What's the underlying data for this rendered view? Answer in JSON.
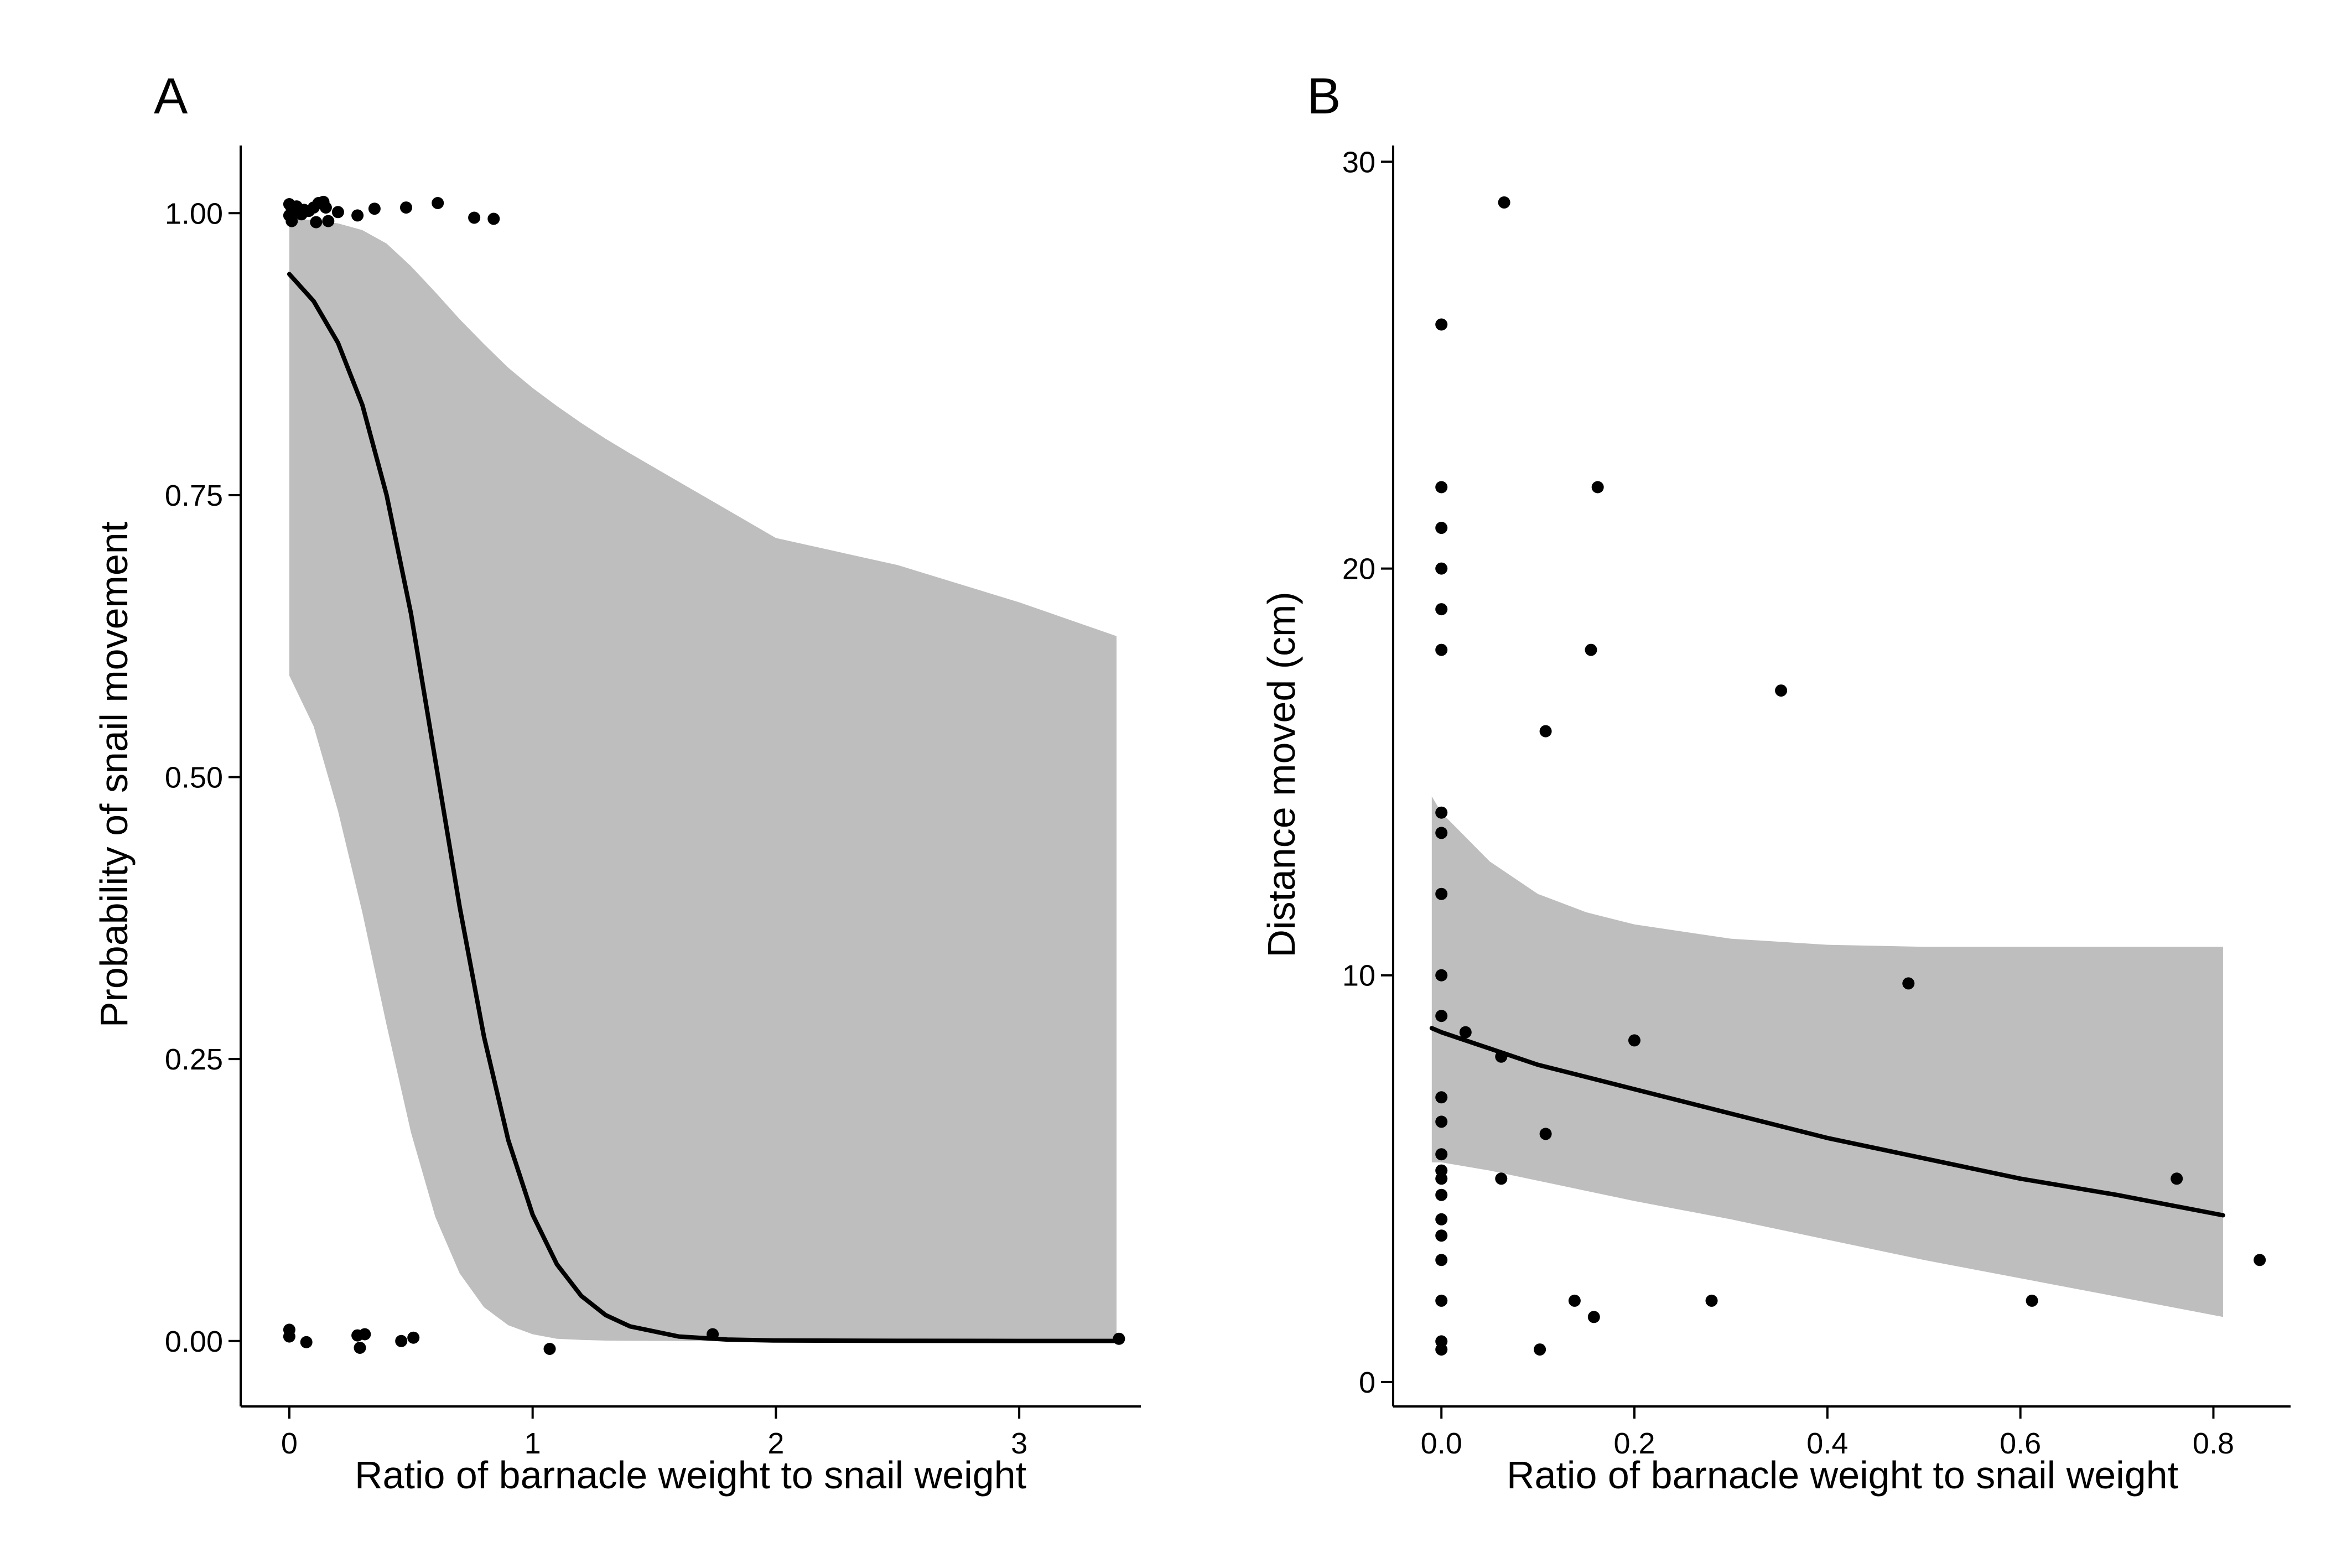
{
  "chart_data": [
    {
      "panel": "A",
      "type": "scatter",
      "xlabel": "Ratio of barnacle weight to snail weight",
      "ylabel": "Probability of snail movement",
      "xlim": [
        -0.2,
        3.5
      ],
      "ylim": [
        -0.058,
        1.06
      ],
      "xticks": [
        0,
        1,
        2,
        3
      ],
      "xtick_labels": [
        "0",
        "1",
        "2",
        "3"
      ],
      "yticks": [
        0,
        0.25,
        0.5,
        0.75,
        1
      ],
      "ytick_labels": [
        "0.00",
        "0.25",
        "0.50",
        "0.75",
        "1.00"
      ],
      "grid": false,
      "legend": "none",
      "colors": {
        "points": "#000000",
        "fit": "#000000",
        "band": "#bebebe"
      },
      "points": [
        {
          "x": 0.0,
          "y": 1.008
        },
        {
          "x": 0.01,
          "y": 1.004
        },
        {
          "x": 0.0,
          "y": 0.998
        },
        {
          "x": 0.01,
          "y": 0.993
        },
        {
          "x": 0.02,
          "y": 1.002
        },
        {
          "x": 0.03,
          "y": 1.006
        },
        {
          "x": 0.05,
          "y": 0.999
        },
        {
          "x": 0.06,
          "y": 1.003
        },
        {
          "x": 0.08,
          "y": 1.002
        },
        {
          "x": 0.1,
          "y": 1.005
        },
        {
          "x": 0.11,
          "y": 0.992
        },
        {
          "x": 0.12,
          "y": 1.009
        },
        {
          "x": 0.14,
          "y": 1.01
        },
        {
          "x": 0.15,
          "y": 1.005
        },
        {
          "x": 0.16,
          "y": 0.993
        },
        {
          "x": 0.2,
          "y": 1.001
        },
        {
          "x": 0.28,
          "y": 0.998
        },
        {
          "x": 0.35,
          "y": 1.004
        },
        {
          "x": 0.48,
          "y": 1.005
        },
        {
          "x": 0.61,
          "y": 1.009
        },
        {
          "x": 0.76,
          "y": 0.996
        },
        {
          "x": 0.84,
          "y": 0.995
        },
        {
          "x": 0.0,
          "y": 0.01
        },
        {
          "x": 0.0,
          "y": 0.004
        },
        {
          "x": 0.07,
          "y": -0.001
        },
        {
          "x": 0.28,
          "y": 0.005
        },
        {
          "x": 0.29,
          "y": -0.006
        },
        {
          "x": 0.31,
          "y": 0.006
        },
        {
          "x": 0.46,
          "y": 0.0
        },
        {
          "x": 0.51,
          "y": 0.003
        },
        {
          "x": 1.07,
          "y": -0.007
        },
        {
          "x": 1.74,
          "y": 0.006
        },
        {
          "x": 3.41,
          "y": 0.002
        }
      ],
      "fit": {
        "x": [
          0,
          0.1,
          0.2,
          0.3,
          0.4,
          0.5,
          0.6,
          0.7,
          0.8,
          0.9,
          1.0,
          1.1,
          1.2,
          1.3,
          1.4,
          1.6,
          1.8,
          2.0,
          2.5,
          3.0,
          3.4
        ],
        "y": [
          0.946,
          0.922,
          0.885,
          0.83,
          0.75,
          0.645,
          0.515,
          0.385,
          0.27,
          0.178,
          0.112,
          0.068,
          0.04,
          0.023,
          0.013,
          0.004,
          0.0013,
          0.0005,
          0.0002,
          0.0001,
          0.0001
        ],
        "lower": [
          0.59,
          0.545,
          0.47,
          0.38,
          0.28,
          0.185,
          0.11,
          0.06,
          0.03,
          0.014,
          0.006,
          0.002,
          0.001,
          0.0004,
          0.0002,
          0.0001,
          0,
          0,
          0,
          0,
          0
        ],
        "upper": [
          0.995,
          0.994,
          0.991,
          0.985,
          0.973,
          0.953,
          0.93,
          0.906,
          0.884,
          0.863,
          0.845,
          0.829,
          0.814,
          0.8,
          0.787,
          0.762,
          0.737,
          0.712,
          0.688,
          0.655,
          0.625
        ]
      }
    },
    {
      "panel": "B",
      "type": "scatter",
      "xlabel": "Ratio of barnacle weight to snail weight",
      "ylabel": "Distance moved (cm)",
      "xlim": [
        -0.05,
        0.88
      ],
      "ylim": [
        -0.6,
        30.4
      ],
      "xticks": [
        0,
        0.2,
        0.4,
        0.6,
        0.8
      ],
      "xtick_labels": [
        "0.0",
        "0.2",
        "0.4",
        "0.6",
        "0.8"
      ],
      "yticks": [
        0,
        10,
        20,
        30
      ],
      "ytick_labels": [
        "0",
        "10",
        "20",
        "30"
      ],
      "grid": false,
      "legend": "none",
      "colors": {
        "points": "#000000",
        "fit": "#000000",
        "band": "#bebebe"
      },
      "points": [
        {
          "x": 0.065,
          "y": 29
        },
        {
          "x": 0.0,
          "y": 26
        },
        {
          "x": 0.0,
          "y": 22
        },
        {
          "x": 0.162,
          "y": 22
        },
        {
          "x": 0.0,
          "y": 21
        },
        {
          "x": 0.0,
          "y": 20
        },
        {
          "x": 0.0,
          "y": 19
        },
        {
          "x": 0.0,
          "y": 18
        },
        {
          "x": 0.155,
          "y": 18
        },
        {
          "x": 0.352,
          "y": 17
        },
        {
          "x": 0.108,
          "y": 16
        },
        {
          "x": 0.0,
          "y": 14
        },
        {
          "x": 0.0,
          "y": 13.5
        },
        {
          "x": 0.0,
          "y": 12
        },
        {
          "x": 0.0,
          "y": 10
        },
        {
          "x": 0.484,
          "y": 9.8
        },
        {
          "x": 0.0,
          "y": 9
        },
        {
          "x": 0.025,
          "y": 8.6
        },
        {
          "x": 0.2,
          "y": 8.4
        },
        {
          "x": 0.062,
          "y": 8
        },
        {
          "x": 0.0,
          "y": 7
        },
        {
          "x": 0.0,
          "y": 6.4
        },
        {
          "x": 0.108,
          "y": 6.1
        },
        {
          "x": 0.0,
          "y": 5.6
        },
        {
          "x": 0.0,
          "y": 5.2
        },
        {
          "x": 0.0,
          "y": 5
        },
        {
          "x": 0.062,
          "y": 5
        },
        {
          "x": 0.762,
          "y": 5
        },
        {
          "x": 0.0,
          "y": 4.6
        },
        {
          "x": 0.0,
          "y": 4
        },
        {
          "x": 0.0,
          "y": 3.6
        },
        {
          "x": 0.0,
          "y": 3
        },
        {
          "x": 0.848,
          "y": 3
        },
        {
          "x": 0.0,
          "y": 2
        },
        {
          "x": 0.138,
          "y": 2
        },
        {
          "x": 0.28,
          "y": 2
        },
        {
          "x": 0.612,
          "y": 2
        },
        {
          "x": 0.158,
          "y": 1.6
        },
        {
          "x": 0.0,
          "y": 1
        },
        {
          "x": 0.0,
          "y": 0.8
        },
        {
          "x": 0.102,
          "y": 0.8
        }
      ],
      "fit": {
        "x": [
          -0.01,
          0.0,
          0.05,
          0.1,
          0.15,
          0.2,
          0.3,
          0.4,
          0.5,
          0.6,
          0.7,
          0.81
        ],
        "y": [
          8.7,
          8.6,
          8.2,
          7.8,
          7.5,
          7.2,
          6.6,
          6.0,
          5.5,
          5.0,
          4.6,
          4.1
        ],
        "lower": [
          5.4,
          5.4,
          5.2,
          4.95,
          4.7,
          4.45,
          4.0,
          3.5,
          3.0,
          2.55,
          2.1,
          1.6
        ],
        "upper": [
          14.4,
          14.0,
          12.8,
          12.0,
          11.55,
          11.25,
          10.9,
          10.75,
          10.7,
          10.7,
          10.7,
          10.7
        ]
      }
    }
  ]
}
